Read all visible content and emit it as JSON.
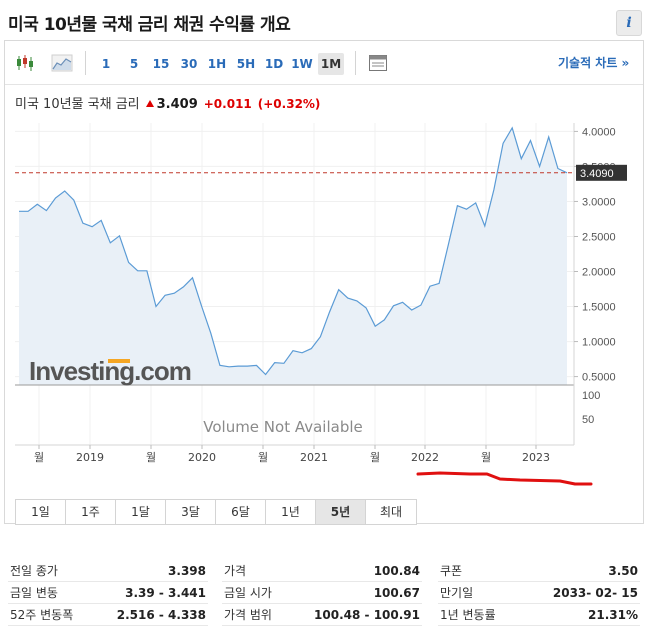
{
  "header": {
    "title": "미국 10년물 국채 금리  채권 수익률 개요",
    "info_label": "i"
  },
  "toolbar": {
    "timeframes": [
      "1",
      "5",
      "15",
      "30",
      "1H",
      "5H",
      "1D",
      "1W",
      "1M"
    ],
    "active_timeframe": "1M",
    "tech_chart_link": "기술적 차트 »"
  },
  "quote": {
    "name": "미국 10년물 국채 금리",
    "price": "3.409",
    "change": "+0.011",
    "change_pct": "(+0.32%)"
  },
  "chart_data": {
    "type": "area",
    "y_ticks": [
      "4.0000",
      "3.5000",
      "3.0000",
      "2.5000",
      "2.0000",
      "1.5000",
      "1.0000",
      "0.5000"
    ],
    "ylim": [
      0.38,
      4.12
    ],
    "volume_ticks": [
      "100",
      "50"
    ],
    "x_labels": [
      "월",
      "2019",
      "월",
      "2020",
      "월",
      "2021",
      "월",
      "2022",
      "월",
      "2023"
    ],
    "current_value_label": "3.4090",
    "current_value": 3.409,
    "volume_note": "Volume Not Available",
    "watermark": "Investing.com",
    "values": [
      2.86,
      2.86,
      2.96,
      2.87,
      3.05,
      3.15,
      3.02,
      2.69,
      2.64,
      2.73,
      2.41,
      2.51,
      2.13,
      2.01,
      2.01,
      1.5,
      1.66,
      1.69,
      1.78,
      1.91,
      1.5,
      1.12,
      0.66,
      0.64,
      0.65,
      0.65,
      0.66,
      0.53,
      0.7,
      0.69,
      0.87,
      0.84,
      0.9,
      1.07,
      1.42,
      1.74,
      1.62,
      1.58,
      1.48,
      1.22,
      1.31,
      1.51,
      1.56,
      1.45,
      1.52,
      1.79,
      1.83,
      2.38,
      2.94,
      2.89,
      2.98,
      2.65,
      3.17,
      3.83,
      4.05,
      3.61,
      3.87,
      3.5,
      3.92,
      3.47,
      3.409
    ],
    "colors": {
      "line": "#5b9bd5",
      "fill": "#e9f0f7",
      "current": "#333333",
      "dashed": "#c0392b"
    }
  },
  "range_buttons": [
    "1일",
    "1주",
    "1달",
    "3달",
    "6달",
    "1년",
    "5년",
    "최대"
  ],
  "active_range": "5년",
  "stats": {
    "col1": [
      {
        "label": "전일 종가",
        "value": "3.398"
      },
      {
        "label": "금일 변동",
        "value": "3.39 - 3.441"
      },
      {
        "label": "52주 변동폭",
        "value": "2.516 - 4.338"
      }
    ],
    "col2": [
      {
        "label": "가격",
        "value": "100.84"
      },
      {
        "label": "금일 시가",
        "value": "100.67"
      },
      {
        "label": "가격 범위",
        "value": "100.48 - 100.91"
      }
    ],
    "col3": [
      {
        "label": "쿠폰",
        "value": "3.50"
      },
      {
        "label": "만기일",
        "value": "2033- 02- 15"
      },
      {
        "label": "1년 변동률",
        "value": "21.31%"
      }
    ]
  }
}
